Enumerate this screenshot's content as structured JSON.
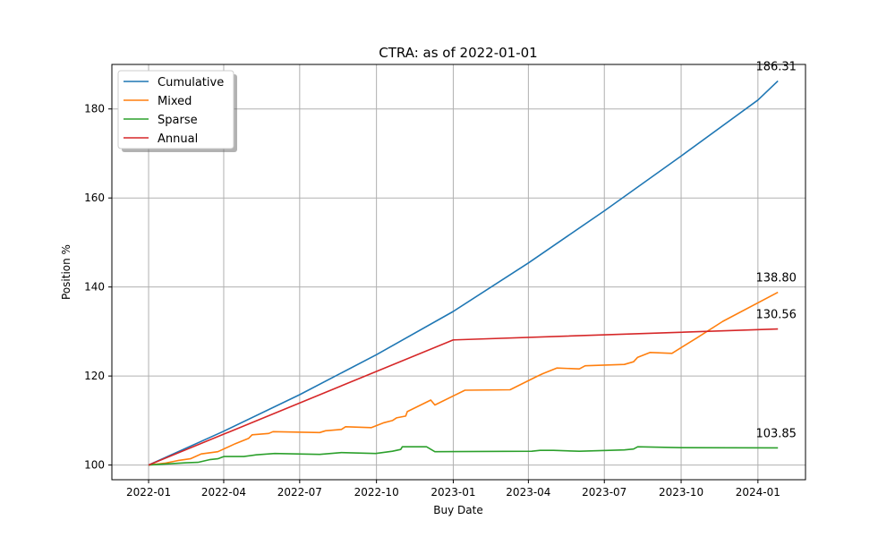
{
  "chart_data": {
    "type": "line",
    "title": "CTRA: as of 2022-01-01",
    "xlabel": "Buy Date",
    "ylabel": "Position %",
    "x_range": [
      "2021-11-18",
      "2024-02-27"
    ],
    "ylim": [
      96.7,
      190.0
    ],
    "x_ticks": [
      {
        "date": "2022-01-01",
        "label": "2022-01"
      },
      {
        "date": "2022-04-01",
        "label": "2022-04"
      },
      {
        "date": "2022-07-01",
        "label": "2022-07"
      },
      {
        "date": "2022-10-01",
        "label": "2022-10"
      },
      {
        "date": "2023-01-01",
        "label": "2023-01"
      },
      {
        "date": "2023-04-01",
        "label": "2023-04"
      },
      {
        "date": "2023-07-01",
        "label": "2023-07"
      },
      {
        "date": "2023-10-01",
        "label": "2023-10"
      },
      {
        "date": "2024-01-01",
        "label": "2024-01"
      }
    ],
    "y_ticks": [
      100,
      120,
      140,
      160,
      180
    ],
    "grid": true,
    "legend_position": "top-left",
    "series": [
      {
        "name": "Cumulative",
        "color": "#1f77b4",
        "end_label": "186.31",
        "points": [
          [
            "2022-01-01",
            100.0
          ],
          [
            "2022-04-01",
            107.6
          ],
          [
            "2022-07-01",
            115.8
          ],
          [
            "2022-10-01",
            124.8
          ],
          [
            "2023-01-01",
            134.5
          ],
          [
            "2023-04-01",
            145.4
          ],
          [
            "2023-07-01",
            157.1
          ],
          [
            "2023-10-01",
            169.4
          ],
          [
            "2024-01-01",
            182.0
          ],
          [
            "2024-01-25",
            186.31
          ]
        ]
      },
      {
        "name": "Mixed",
        "color": "#ff7f0e",
        "end_label": "138.80",
        "points": [
          [
            "2022-01-01",
            100.0
          ],
          [
            "2022-01-20",
            100.4
          ],
          [
            "2022-02-05",
            101.0
          ],
          [
            "2022-02-20",
            101.4
          ],
          [
            "2022-03-05",
            102.5
          ],
          [
            "2022-03-25",
            103.0
          ],
          [
            "2022-04-15",
            104.8
          ],
          [
            "2022-05-01",
            106.0
          ],
          [
            "2022-05-05",
            106.8
          ],
          [
            "2022-05-25",
            107.1
          ],
          [
            "2022-05-30",
            107.5
          ],
          [
            "2022-07-25",
            107.3
          ],
          [
            "2022-08-01",
            107.7
          ],
          [
            "2022-08-20",
            108.0
          ],
          [
            "2022-08-25",
            108.6
          ],
          [
            "2022-09-25",
            108.4
          ],
          [
            "2022-10-10",
            109.5
          ],
          [
            "2022-10-20",
            110.0
          ],
          [
            "2022-10-25",
            110.6
          ],
          [
            "2022-11-05",
            111.0
          ],
          [
            "2022-11-07",
            112.0
          ],
          [
            "2022-12-05",
            114.6
          ],
          [
            "2022-12-10",
            113.5
          ],
          [
            "2023-01-15",
            116.8
          ],
          [
            "2023-03-10",
            116.9
          ],
          [
            "2023-04-10",
            119.8
          ],
          [
            "2023-04-18",
            120.5
          ],
          [
            "2023-05-05",
            121.8
          ],
          [
            "2023-06-01",
            121.6
          ],
          [
            "2023-06-08",
            122.3
          ],
          [
            "2023-07-25",
            122.6
          ],
          [
            "2023-08-05",
            123.2
          ],
          [
            "2023-08-10",
            124.2
          ],
          [
            "2023-08-25",
            125.3
          ],
          [
            "2023-09-20",
            125.1
          ],
          [
            "2023-10-20",
            128.6
          ],
          [
            "2023-11-20",
            132.3
          ],
          [
            "2024-01-25",
            138.8
          ]
        ]
      },
      {
        "name": "Sparse",
        "color": "#2ca02c",
        "end_label": "103.85",
        "points": [
          [
            "2022-01-01",
            100.0
          ],
          [
            "2022-02-15",
            100.5
          ],
          [
            "2022-03-01",
            100.6
          ],
          [
            "2022-03-15",
            101.2
          ],
          [
            "2022-03-25",
            101.4
          ],
          [
            "2022-04-01",
            101.9
          ],
          [
            "2022-04-25",
            101.9
          ],
          [
            "2022-05-10",
            102.3
          ],
          [
            "2022-06-01",
            102.6
          ],
          [
            "2022-07-25",
            102.4
          ],
          [
            "2022-08-20",
            102.8
          ],
          [
            "2022-09-30",
            102.6
          ],
          [
            "2022-10-20",
            103.1
          ],
          [
            "2022-10-30",
            103.5
          ],
          [
            "2022-11-01",
            104.1
          ],
          [
            "2022-11-30",
            104.1
          ],
          [
            "2022-12-10",
            103.0
          ],
          [
            "2023-04-05",
            103.1
          ],
          [
            "2023-04-15",
            103.3
          ],
          [
            "2023-05-01",
            103.3
          ],
          [
            "2023-06-01",
            103.1
          ],
          [
            "2023-07-25",
            103.4
          ],
          [
            "2023-08-05",
            103.6
          ],
          [
            "2023-08-10",
            104.1
          ],
          [
            "2023-10-01",
            103.9
          ],
          [
            "2024-01-25",
            103.85
          ]
        ]
      },
      {
        "name": "Annual",
        "color": "#d62728",
        "end_label": "130.56",
        "points": [
          [
            "2022-01-01",
            100.0
          ],
          [
            "2023-01-01",
            128.1
          ],
          [
            "2024-01-25",
            130.56
          ]
        ]
      }
    ]
  }
}
